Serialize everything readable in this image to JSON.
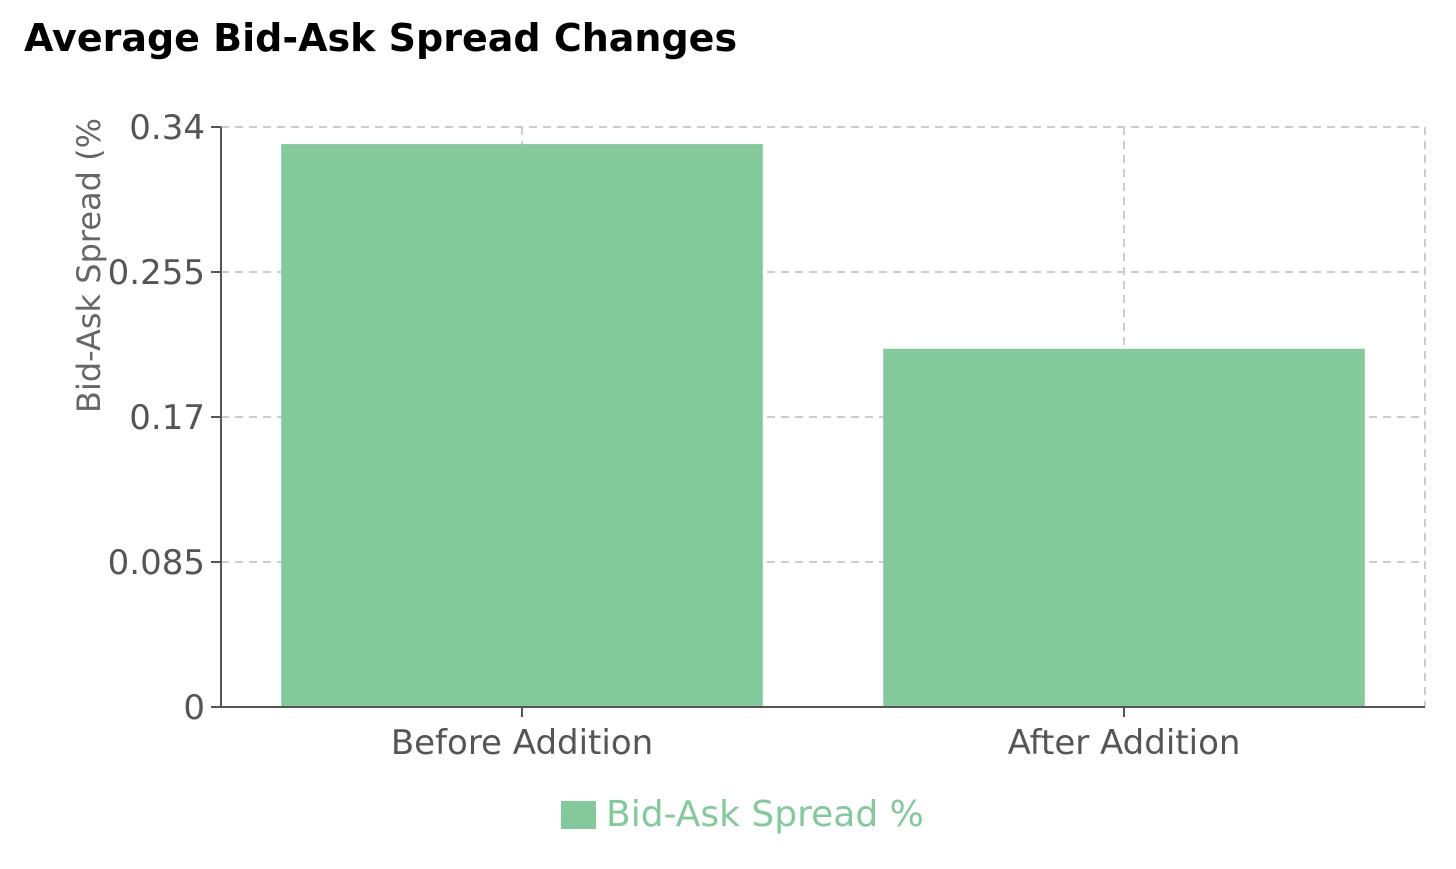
{
  "chart_data": {
    "type": "bar",
    "title": "Average Bid-Ask Spread Changes",
    "categories": [
      "Before Addition",
      "After Addition"
    ],
    "series": [
      {
        "name": "Bid-Ask Spread %",
        "values": [
          0.33,
          0.21
        ],
        "color": "#84c99c"
      }
    ],
    "xlabel": "",
    "ylabel": "Bid-Ask Spread (%",
    "ylim": [
      0,
      0.34
    ],
    "yticks": [
      "0",
      "0.085",
      "0.17",
      "0.255",
      "0.34"
    ],
    "grid": true,
    "legend_position": "bottom"
  }
}
